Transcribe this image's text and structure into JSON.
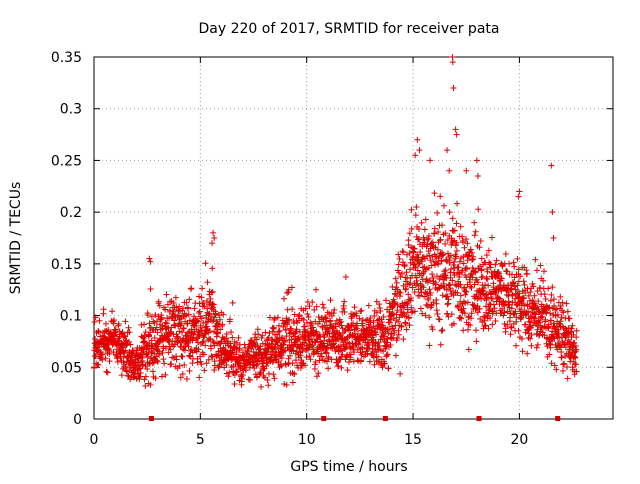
{
  "chart_data": {
    "type": "scatter",
    "title": "Day 220 of 2017, SRMTID for receiver pata",
    "xlabel": "GPS time / hours",
    "ylabel": "SRMTID / TECUs",
    "xlim": [
      0,
      24.4
    ],
    "ylim": [
      0,
      0.35
    ],
    "xticks": [
      "0",
      "5",
      "10",
      "15",
      "20"
    ],
    "xtick_values": [
      0,
      5,
      10,
      15,
      20
    ],
    "yticks": [
      "0",
      "0.05",
      "0.1",
      "0.15",
      "0.2",
      "0.25",
      "0.3",
      "0.35"
    ],
    "ytick_values": [
      0,
      0.05,
      0.1,
      0.15,
      0.2,
      0.25,
      0.3,
      0.35
    ],
    "grid": true,
    "marker": "+",
    "color": "#e00000",
    "baseline_markers_x": [
      2.7,
      10.8,
      13.7,
      18.1,
      21.8
    ],
    "envelope": {
      "x": [
        0,
        1,
        2,
        2.6,
        3,
        4,
        5,
        5.5,
        6,
        7,
        8,
        9,
        10,
        11,
        12,
        13,
        13.8,
        14.3,
        15,
        16,
        17,
        18,
        19,
        20,
        21,
        22,
        22.7
      ],
      "mean": [
        0.07,
        0.08,
        0.05,
        0.07,
        0.08,
        0.085,
        0.08,
        0.1,
        0.07,
        0.055,
        0.06,
        0.075,
        0.075,
        0.08,
        0.08,
        0.075,
        0.08,
        0.11,
        0.15,
        0.14,
        0.145,
        0.125,
        0.125,
        0.11,
        0.1,
        0.08,
        0.06
      ],
      "spread": [
        0.02,
        0.02,
        0.018,
        0.035,
        0.03,
        0.03,
        0.03,
        0.04,
        0.022,
        0.02,
        0.02,
        0.03,
        0.025,
        0.025,
        0.025,
        0.025,
        0.03,
        0.04,
        0.045,
        0.05,
        0.05,
        0.04,
        0.035,
        0.035,
        0.03,
        0.03,
        0.02
      ]
    },
    "outliers": [
      {
        "x": 2.6,
        "y": 0.155
      },
      {
        "x": 2.65,
        "y": 0.152
      },
      {
        "x": 5.6,
        "y": 0.18
      },
      {
        "x": 5.65,
        "y": 0.175
      },
      {
        "x": 5.55,
        "y": 0.17
      },
      {
        "x": 15.2,
        "y": 0.27
      },
      {
        "x": 15.3,
        "y": 0.26
      },
      {
        "x": 15.1,
        "y": 0.255
      },
      {
        "x": 15.8,
        "y": 0.25
      },
      {
        "x": 16.6,
        "y": 0.26
      },
      {
        "x": 16.7,
        "y": 0.24
      },
      {
        "x": 16.85,
        "y": 0.35
      },
      {
        "x": 16.87,
        "y": 0.345
      },
      {
        "x": 16.9,
        "y": 0.32
      },
      {
        "x": 17.0,
        "y": 0.28
      },
      {
        "x": 17.05,
        "y": 0.275
      },
      {
        "x": 17.5,
        "y": 0.24
      },
      {
        "x": 18.0,
        "y": 0.25
      },
      {
        "x": 18.05,
        "y": 0.235
      },
      {
        "x": 20.0,
        "y": 0.22
      },
      {
        "x": 19.95,
        "y": 0.215
      },
      {
        "x": 21.5,
        "y": 0.245
      },
      {
        "x": 21.55,
        "y": 0.2
      },
      {
        "x": 21.6,
        "y": 0.175
      }
    ]
  }
}
